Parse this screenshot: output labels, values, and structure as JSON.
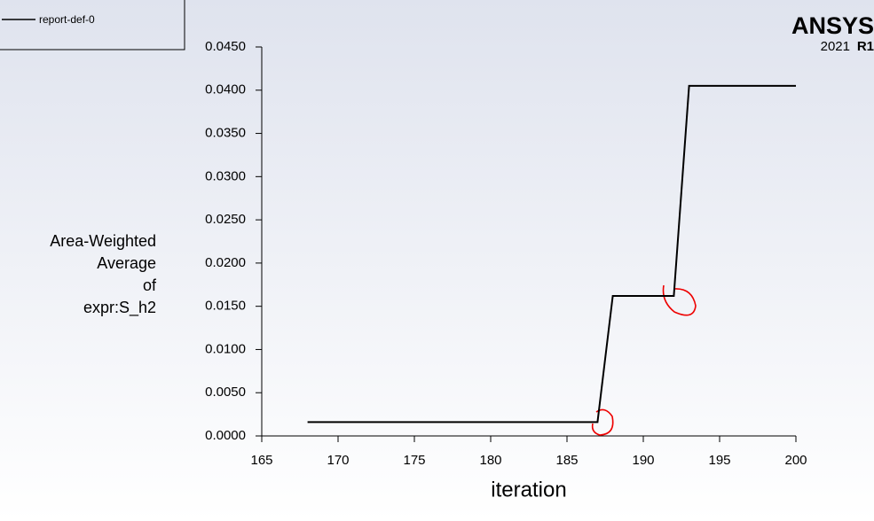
{
  "chart_data": {
    "type": "line",
    "legend_label": "report-def-0",
    "logo": {
      "brand": "ANSYS",
      "year": "2021",
      "release": "R1"
    },
    "ylabel": [
      "Area-Weighted",
      "Average",
      "of",
      "expr:S_h2"
    ],
    "xlabel": "iteration",
    "x": [
      168,
      169,
      170,
      171,
      172,
      173,
      174,
      175,
      176,
      177,
      178,
      179,
      180,
      181,
      182,
      183,
      184,
      185,
      186,
      187,
      188,
      189,
      190,
      191,
      192,
      193,
      194,
      195,
      196,
      197,
      198,
      199,
      200
    ],
    "series": [
      {
        "name": "report-def-0",
        "color": "#000000",
        "values": [
          0.0016,
          0.0016,
          0.0016,
          0.0016,
          0.0016,
          0.0016,
          0.0016,
          0.0016,
          0.0016,
          0.0016,
          0.0016,
          0.0016,
          0.0016,
          0.0016,
          0.0016,
          0.0016,
          0.0016,
          0.0016,
          0.0016,
          0.0016,
          0.0162,
          0.0162,
          0.0162,
          0.0162,
          0.0162,
          0.0405,
          0.0405,
          0.0405,
          0.0405,
          0.0405,
          0.0405,
          0.0405,
          0.0405
        ]
      }
    ],
    "xlim": [
      165,
      200
    ],
    "xticks": [
      165,
      170,
      175,
      180,
      185,
      190,
      195,
      200
    ],
    "ylim": [
      0,
      0.045
    ],
    "yticks": [
      {
        "value": 0,
        "label": "0.0000"
      },
      {
        "value": 0.005,
        "label": "0.0050"
      },
      {
        "value": 0.01,
        "label": "0.0100"
      },
      {
        "value": 0.015,
        "label": "0.0150"
      },
      {
        "value": 0.02,
        "label": "0.0200"
      },
      {
        "value": 0.025,
        "label": "0.0250"
      },
      {
        "value": 0.03,
        "label": "0.0300"
      },
      {
        "value": 0.035,
        "label": "0.0350"
      },
      {
        "value": 0.04,
        "label": "0.0400"
      },
      {
        "value": 0.045,
        "label": "0.0450"
      }
    ]
  }
}
